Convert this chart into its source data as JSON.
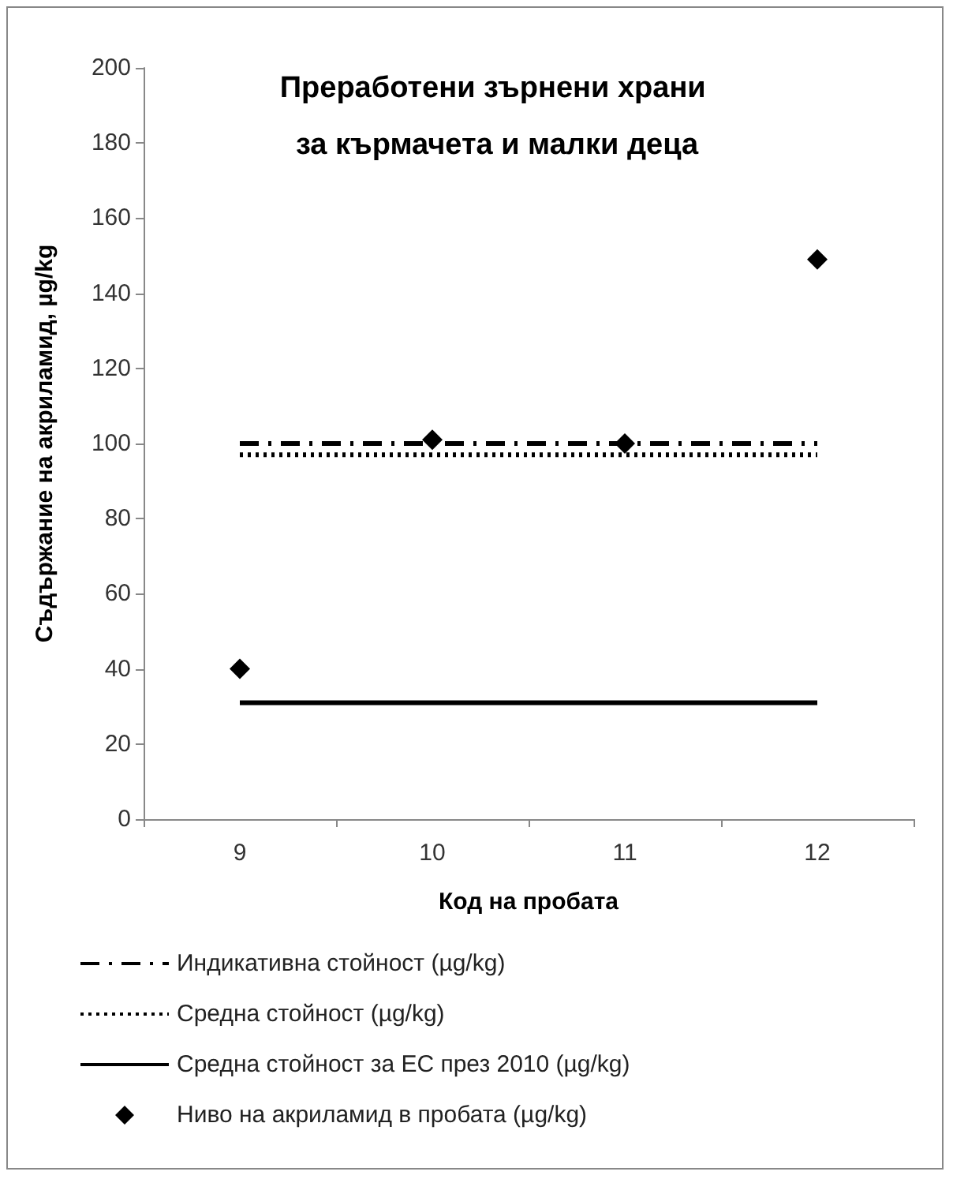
{
  "chart_data": {
    "type": "line",
    "title": "Преработени зърнени храни за кърмачета и малки деца",
    "xlabel": "Код на пробата",
    "ylabel": "Съдържание на акриламид, µg/kg",
    "categories": [
      "9",
      "10",
      "11",
      "12"
    ],
    "series": [
      {
        "name": "Индикативна стойност (µg/kg)",
        "color": "#000000",
        "line_style": "dashdot",
        "marker": "none",
        "values": [
          100,
          100,
          100,
          100
        ]
      },
      {
        "name": "Средна стойност (µg/kg)",
        "color": "#000000",
        "line_style": "dotted",
        "marker": "none",
        "values": [
          97,
          97,
          97,
          97
        ]
      },
      {
        "name": "Средна стойност за ЕС през 2010 (µg/kg)",
        "color": "#000000",
        "line_style": "solid",
        "marker": "none",
        "values": [
          31,
          31,
          31,
          31
        ]
      },
      {
        "name": "Ниво на акриламид в пробата (µg/kg)",
        "type": "scatter",
        "color": "#000000",
        "marker": "diamond",
        "values": [
          40,
          101,
          100,
          149
        ]
      }
    ],
    "ylim": [
      0,
      200
    ],
    "yticks": [
      0,
      20,
      40,
      60,
      80,
      100,
      120,
      140,
      160,
      180,
      200
    ],
    "grid": false,
    "legend": "bottom"
  }
}
